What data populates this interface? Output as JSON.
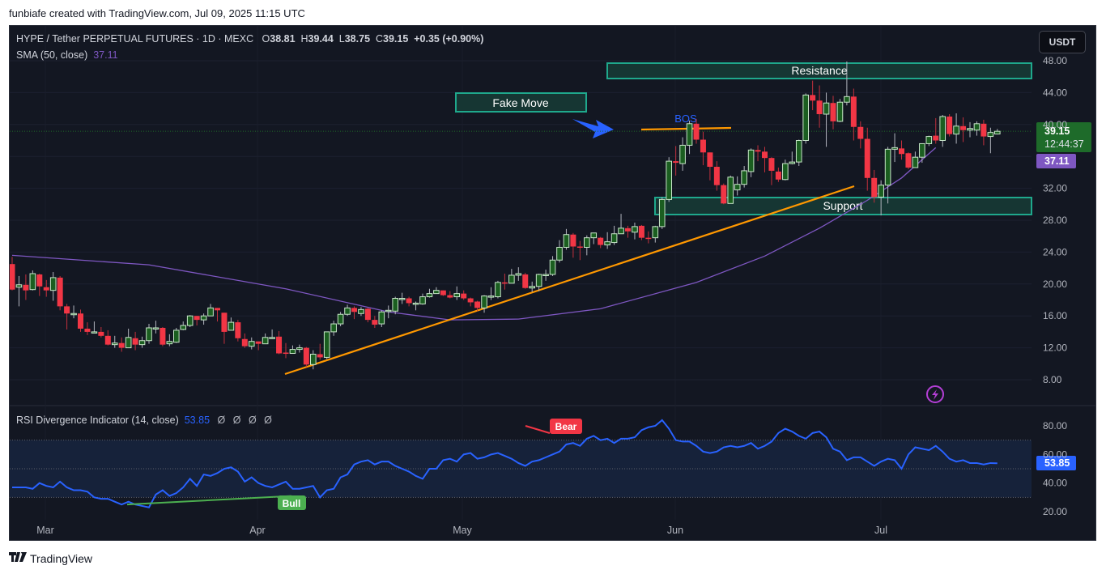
{
  "header": {
    "credit": "funbiafe created with TradingView.com, Jul 09, 2025 11:15 UTC"
  },
  "legend": {
    "symbol": "HYPE / Tether PERPETUAL FUTURES · 1D · MEXC",
    "o_label": "O",
    "o": "38.81",
    "h_label": "H",
    "h": "39.44",
    "l_label": "L",
    "l": "38.75",
    "c_label": "C",
    "c": "39.15",
    "change": "+0.35 (+0.90%)",
    "sma_label": "SMA (50, close)",
    "sma_value": "37.11"
  },
  "rsi_legend": {
    "label": "RSI Divergence Indicator (14, close)",
    "value": "53.85",
    "extras": [
      "Ø",
      "Ø",
      "Ø",
      "Ø"
    ]
  },
  "currency_button": "USDT",
  "price_labels": {
    "last_price": "39.15",
    "countdown": "12:44:37",
    "sma": "37.11",
    "rsi": "53.85"
  },
  "footer": {
    "logo": "TV",
    "brand": "TradingView"
  },
  "colors": {
    "background": "#131722",
    "up": "#1b5e20",
    "up_border": "#c8e6c9",
    "down": "#f23645",
    "sma": "#7e57c2",
    "trendline": "#ff9800",
    "rsi": "#2962ff",
    "zone_border": "#1fa88c",
    "zone_fill": "#163633",
    "bull": "#4caf50",
    "bear": "#f23645",
    "last_price_bg": "#1e6b2a",
    "sma_label_bg": "#7e57c2",
    "rsi_label_bg": "#2962ff"
  },
  "chart_data": [
    {
      "type": "candlestick",
      "title": "HYPE / Tether PERPETUAL FUTURES · 1D · MEXC",
      "ylabel": "USDT",
      "ylim": [
        6,
        50
      ],
      "y_ticks": [
        "48.00",
        "44.00",
        "40.00",
        "32.00",
        "28.00",
        "24.00",
        "20.00",
        "16.00",
        "12.00",
        "8.00"
      ],
      "x_ticks": [
        "Mar",
        "Apr",
        "May",
        "Jun",
        "Jul"
      ],
      "start_date": "2025-02-24",
      "end_date": "2025-07-09",
      "ohlc": [
        [
          22.5,
          19.3,
          23.4,
          19.2
        ],
        [
          19.6,
          19.9,
          21.0,
          17.2
        ],
        [
          19.9,
          19.2,
          21.2,
          18.0
        ],
        [
          19.3,
          21.3,
          21.7,
          19.2
        ],
        [
          21.2,
          19.7,
          21.3,
          18.5
        ],
        [
          19.6,
          19.2,
          20.5,
          18.4
        ],
        [
          19.2,
          20.8,
          21.5,
          17.9
        ],
        [
          20.8,
          17.2,
          21.0,
          16.7
        ],
        [
          17.2,
          16.3,
          17.5,
          14.3
        ],
        [
          16.2,
          16.3,
          17.3,
          15.7
        ],
        [
          16.3,
          14.4,
          16.8,
          14.0
        ],
        [
          14.4,
          14.0,
          15.2,
          13.6
        ],
        [
          14.0,
          14.0,
          15.3,
          14.0
        ],
        [
          14.0,
          13.5,
          14.6,
          13.3
        ],
        [
          13.5,
          12.4,
          14.2,
          12.3
        ],
        [
          12.4,
          12.6,
          13.5,
          12.0
        ],
        [
          12.6,
          12.0,
          13.3,
          11.5
        ],
        [
          12.0,
          13.3,
          14.4,
          12.0
        ],
        [
          13.2,
          12.4,
          14.0,
          11.7
        ],
        [
          12.4,
          12.9,
          13.4,
          12.0
        ],
        [
          12.9,
          14.5,
          15.0,
          12.5
        ],
        [
          14.5,
          14.5,
          15.4,
          13.8
        ],
        [
          14.5,
          12.4,
          14.6,
          12.2
        ],
        [
          12.5,
          12.8,
          13.7,
          12.2
        ],
        [
          12.7,
          14.2,
          14.5,
          12.6
        ],
        [
          14.3,
          14.8,
          15.3,
          14.2
        ],
        [
          14.8,
          16.0,
          16.1,
          14.6
        ],
        [
          16.0,
          15.5,
          15.9,
          14.8
        ],
        [
          15.5,
          16.0,
          16.3,
          14.9
        ],
        [
          16.0,
          17.0,
          17.5,
          16.6
        ],
        [
          17.0,
          16.7,
          16.5,
          15.3
        ],
        [
          16.4,
          14.0,
          16.2,
          12.5
        ],
        [
          14.2,
          15.2,
          15.8,
          14.8
        ],
        [
          15.2,
          13.2,
          15.5,
          12.8
        ],
        [
          13.1,
          12.2,
          13.8,
          12.0
        ],
        [
          12.2,
          12.8,
          13.3,
          11.8
        ],
        [
          12.8,
          12.5,
          12.8,
          11.7
        ],
        [
          12.5,
          13.3,
          13.8,
          12.7
        ],
        [
          13.3,
          13.3,
          14.3,
          13.1
        ],
        [
          13.4,
          11.3,
          14.1,
          11.2
        ],
        [
          11.4,
          11.3,
          12.6,
          10.7
        ],
        [
          11.3,
          11.8,
          12.3,
          11.3
        ],
        [
          11.8,
          12.0,
          12.4,
          11.4
        ],
        [
          12.0,
          9.9,
          12.1,
          9.6
        ],
        [
          9.9,
          11.2,
          11.7,
          9.3
        ],
        [
          11.2,
          10.8,
          12.5,
          10.5
        ],
        [
          10.8,
          14.0,
          14.0,
          10.6
        ],
        [
          14.0,
          15.0,
          15.4,
          13.5
        ],
        [
          15.0,
          16.2,
          16.5,
          14.7
        ],
        [
          16.2,
          17.0,
          17.4,
          16.0
        ],
        [
          17.0,
          16.5,
          17.2,
          15.6
        ],
        [
          16.3,
          16.8,
          17.1,
          16.0
        ],
        [
          16.9,
          15.5,
          17.0,
          15.2
        ],
        [
          15.5,
          14.9,
          16.0,
          14.5
        ],
        [
          15.0,
          16.5,
          16.7,
          14.6
        ],
        [
          16.6,
          16.7,
          17.3,
          15.7
        ],
        [
          16.6,
          18.2,
          18.4,
          16.2
        ],
        [
          18.2,
          18.2,
          18.9,
          17.5
        ],
        [
          18.2,
          17.6,
          18.4,
          17.2
        ],
        [
          17.6,
          17.6,
          17.8,
          16.7
        ],
        [
          17.5,
          18.4,
          18.8,
          17.4
        ],
        [
          18.4,
          18.8,
          19.4,
          18.3
        ],
        [
          18.8,
          19.2,
          19.6,
          18.8
        ],
        [
          19.2,
          18.6,
          19.2,
          18.5
        ],
        [
          18.6,
          18.3,
          19.1,
          18.2
        ],
        [
          18.4,
          18.8,
          19.7,
          18.0
        ],
        [
          18.8,
          18.2,
          19.2,
          18.0
        ],
        [
          18.2,
          17.7,
          18.3,
          17.2
        ],
        [
          17.8,
          17.0,
          17.9,
          16.6
        ],
        [
          17.0,
          18.5,
          18.6,
          16.4
        ],
        [
          18.5,
          18.5,
          19.6,
          18.0
        ],
        [
          18.4,
          20.2,
          20.4,
          18.2
        ],
        [
          20.2,
          20.1,
          21.3,
          19.3
        ],
        [
          20.1,
          21.1,
          21.9,
          20.1
        ],
        [
          21.1,
          21.3,
          22.1,
          20.4
        ],
        [
          21.2,
          19.5,
          21.4,
          19.4
        ],
        [
          19.5,
          19.7,
          20.3,
          19.0
        ],
        [
          19.7,
          21.2,
          21.3,
          19.1
        ],
        [
          21.2,
          21.2,
          21.8,
          20.4
        ],
        [
          21.2,
          23.0,
          23.5,
          21.0
        ],
        [
          23.0,
          24.6,
          25.5,
          22.7
        ],
        [
          24.6,
          26.2,
          26.9,
          24.3
        ],
        [
          26.2,
          24.7,
          26.4,
          23.3
        ],
        [
          24.7,
          24.6,
          25.4,
          23.0
        ],
        [
          24.6,
          25.8,
          26.1,
          23.6
        ],
        [
          25.8,
          26.4,
          26.0,
          25.0
        ],
        [
          25.8,
          24.9,
          25.9,
          24.5
        ],
        [
          24.9,
          25.3,
          26.5,
          24.4
        ],
        [
          25.2,
          26.3,
          27.3,
          24.9
        ],
        [
          26.3,
          27.0,
          28.8,
          26.5
        ],
        [
          27.0,
          26.6,
          27.3,
          25.8
        ],
        [
          26.5,
          27.2,
          27.7,
          25.6
        ],
        [
          27.3,
          25.8,
          27.4,
          25.5
        ],
        [
          25.8,
          25.7,
          26.6,
          25.1
        ],
        [
          25.8,
          27.2,
          27.3,
          25.2
        ],
        [
          27.2,
          30.6,
          30.9,
          26.9
        ],
        [
          30.6,
          35.4,
          35.9,
          30.3
        ],
        [
          35.4,
          35.2,
          37.3,
          33.6
        ],
        [
          35.1,
          37.4,
          38.4,
          34.2
        ],
        [
          37.4,
          40.1,
          40.5,
          36.3
        ],
        [
          40.1,
          38.1,
          40.7,
          37.6
        ],
        [
          38.1,
          36.5,
          39.1,
          34.9
        ],
        [
          36.5,
          34.7,
          36.4,
          33.0
        ],
        [
          34.7,
          32.4,
          35.4,
          31.7
        ],
        [
          32.4,
          30.1,
          32.6,
          30.0
        ],
        [
          30.1,
          33.4,
          33.6,
          30.5
        ],
        [
          31.8,
          32.5,
          33.5,
          31.1
        ],
        [
          32.5,
          34.2,
          34.8,
          32.1
        ],
        [
          34.1,
          36.8,
          37.0,
          33.4
        ],
        [
          36.8,
          36.6,
          37.4,
          35.4
        ],
        [
          36.6,
          35.8,
          37.2,
          34.0
        ],
        [
          35.8,
          34.2,
          35.9,
          32.4
        ],
        [
          34.1,
          33.1,
          34.6,
          32.8
        ],
        [
          33.1,
          35.1,
          35.6,
          33.0
        ],
        [
          35.1,
          35.3,
          36.6,
          35.0
        ],
        [
          35.3,
          38.0,
          38.1,
          34.8
        ],
        [
          38.0,
          43.7,
          43.9,
          37.6
        ],
        [
          43.7,
          43.0,
          45.5,
          41.8
        ],
        [
          43.0,
          41.3,
          44.9,
          39.6
        ],
        [
          41.3,
          42.7,
          44.0,
          37.2
        ],
        [
          42.7,
          40.4,
          43.6,
          39.4
        ],
        [
          40.4,
          42.8,
          43.2,
          40.3
        ],
        [
          42.8,
          43.5,
          47.9,
          42.4
        ],
        [
          43.5,
          39.7,
          44.5,
          38.0
        ],
        [
          39.7,
          38.2,
          40.4,
          37.0
        ],
        [
          38.2,
          33.3,
          39.6,
          31.7
        ],
        [
          33.3,
          30.9,
          34.3,
          30.2
        ],
        [
          30.9,
          32.4,
          33.0,
          28.6
        ],
        [
          32.4,
          36.9,
          37.2,
          30.1
        ],
        [
          36.9,
          37.1,
          38.9,
          35.3
        ],
        [
          37.0,
          36.3,
          38.0,
          35.6
        ],
        [
          36.4,
          34.6,
          36.5,
          34.4
        ],
        [
          34.6,
          35.9,
          36.6,
          35.0
        ],
        [
          35.9,
          37.6,
          37.4,
          35.2
        ],
        [
          37.6,
          38.5,
          38.6,
          37.3
        ],
        [
          38.6,
          38.0,
          40.8,
          37.6
        ],
        [
          38.0,
          41.0,
          41.2,
          37.2
        ],
        [
          41.0,
          38.8,
          41.3,
          38.5
        ],
        [
          38.8,
          39.8,
          41.4,
          37.6
        ],
        [
          39.8,
          39.3,
          40.9,
          37.8
        ],
        [
          39.3,
          39.5,
          40.3,
          38.4
        ],
        [
          39.3,
          40.1,
          40.4,
          38.6
        ],
        [
          40.1,
          38.5,
          40.6,
          37.4
        ],
        [
          38.5,
          39.0,
          39.6,
          36.4
        ],
        [
          38.81,
          39.15,
          39.44,
          38.75
        ]
      ],
      "sma50": {
        "name": "SMA (50, close)",
        "last": 37.11,
        "points": [
          [
            0,
            23.6
          ],
          [
            20,
            22.4
          ],
          [
            40,
            19.4
          ],
          [
            55,
            16.5
          ],
          [
            64,
            15.5
          ],
          [
            74,
            15.6
          ],
          [
            86,
            16.9
          ],
          [
            100,
            20.2
          ],
          [
            110,
            23.5
          ],
          [
            118,
            27.0
          ],
          [
            125,
            30.5
          ],
          [
            130,
            33.3
          ],
          [
            135,
            37.1
          ]
        ]
      },
      "annotations": {
        "resistance_zone": {
          "label": "Resistance",
          "price_top": 48.2,
          "price_bottom": 46.2,
          "from_index": 87,
          "to_index": 150
        },
        "support_zone": {
          "label": "Support",
          "price_top": 30.8,
          "price_bottom": 28.7,
          "from_index": 94,
          "to_index": 150
        },
        "fake_move_box": {
          "label": "Fake Move"
        },
        "bos": {
          "label": "BOS",
          "price": 39.9,
          "from_index": 91,
          "to_index": 105
        },
        "trendline": {
          "from": [
            40,
            8.9
          ],
          "to": [
            124,
            32.2
          ]
        }
      }
    },
    {
      "type": "line",
      "title": "RSI Divergence Indicator (14, close)",
      "ylim": [
        10,
        90
      ],
      "y_ticks": [
        "80.00",
        "60.00",
        "40.00",
        "20.00"
      ],
      "bands": [
        30,
        50,
        70
      ],
      "last": 53.85,
      "values": [
        37,
        37,
        37,
        36,
        40,
        38,
        37,
        41,
        37,
        35,
        35,
        34,
        30,
        29,
        29,
        27,
        25,
        27,
        25,
        24,
        23,
        32,
        35,
        31,
        33,
        37,
        43,
        38,
        46,
        45,
        47,
        50,
        51,
        48,
        41,
        44,
        40,
        38,
        37,
        39,
        41,
        36,
        36,
        37,
        38,
        30,
        35,
        36,
        44,
        46,
        53,
        55,
        56,
        53,
        55,
        55,
        52,
        50,
        48,
        45,
        43,
        50,
        50,
        56,
        57,
        55,
        60,
        61,
        57,
        58,
        60,
        61,
        59,
        57,
        54,
        52,
        55,
        56,
        58,
        60,
        62,
        67,
        68,
        66,
        71,
        73,
        70,
        71,
        68,
        71,
        71,
        72,
        77,
        79,
        80,
        84,
        78,
        70,
        69,
        69,
        66,
        62,
        61,
        62,
        65,
        66,
        65,
        66,
        68,
        64,
        66,
        69,
        75,
        78,
        76,
        73,
        71,
        75,
        76,
        72,
        64,
        62,
        56,
        58,
        58,
        55,
        52,
        55,
        57,
        56,
        50,
        60,
        65,
        64,
        63,
        66,
        62,
        57,
        55,
        56,
        54,
        54,
        53,
        54,
        53.85
      ],
      "divergences": [
        {
          "label": "Bull",
          "from": {
            "index": 17,
            "value": 25
          },
          "to": {
            "index": 40,
            "value": 31
          }
        },
        {
          "label": "Bear",
          "from": {
            "index": 75,
            "value": 76
          },
          "to": {
            "index": 82,
            "value": 70
          }
        }
      ]
    }
  ]
}
